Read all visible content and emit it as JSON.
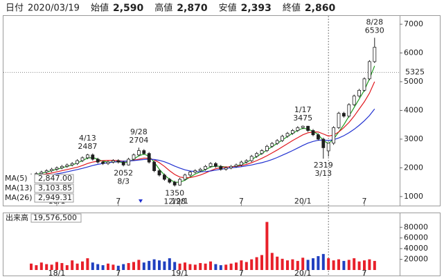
{
  "header": {
    "date_name": "日付",
    "date": "2020/03/19",
    "fields": [
      {
        "name": "始値",
        "value": "2,590",
        "color": "#000000"
      },
      {
        "name": "高値",
        "value": "2,870",
        "color": "#e0181e"
      },
      {
        "name": "安値",
        "value": "2,393",
        "color": "#1e9a1e"
      },
      {
        "name": "終値",
        "value": "2,860",
        "color": "#000000"
      }
    ]
  },
  "chart_data": {
    "type": "candlestick",
    "categories": [
      null,
      null,
      null,
      null,
      null,
      "18/1",
      null,
      null,
      null,
      null,
      null,
      null,
      null,
      null,
      null,
      null,
      null,
      "7",
      null,
      null,
      null,
      null,
      null,
      null,
      null,
      null,
      null,
      null,
      null,
      "19/1",
      null,
      null,
      null,
      null,
      null,
      null,
      null,
      null,
      null,
      null,
      null,
      "7",
      null,
      null,
      null,
      null,
      null,
      null,
      null,
      null,
      null,
      null,
      null,
      "20/1",
      null,
      null,
      null,
      null,
      null,
      null,
      null,
      null,
      null,
      null,
      null,
      "7",
      null,
      null
    ],
    "open": [
      1700,
      1750,
      1800,
      1850,
      1900,
      1950,
      2000,
      2050,
      2100,
      2150,
      2250,
      2350,
      2450,
      2300,
      2200,
      2150,
      2200,
      2250,
      2200,
      2100,
      2300,
      2450,
      2600,
      2500,
      2200,
      1900,
      1750,
      1600,
      1500,
      1400,
      1600,
      1750,
      1850,
      1900,
      1950,
      2050,
      2150,
      2050,
      1950,
      2000,
      2050,
      2100,
      2200,
      2250,
      2400,
      2500,
      2600,
      2750,
      2850,
      2950,
      3100,
      3200,
      3300,
      3400,
      3450,
      3300,
      3150,
      3000,
      2590,
      2860,
      3400,
      3900,
      3800,
      4200,
      4500,
      4700,
      5100,
      5700
    ],
    "high": [
      1800,
      1850,
      1900,
      1950,
      2000,
      2050,
      2100,
      2150,
      2200,
      2300,
      2400,
      2487,
      2500,
      2350,
      2250,
      2250,
      2300,
      2300,
      2250,
      2350,
      2500,
      2704,
      2650,
      2550,
      2250,
      1950,
      1800,
      1650,
      1550,
      1650,
      1800,
      1900,
      1950,
      2000,
      2100,
      2200,
      2200,
      2100,
      2050,
      2100,
      2150,
      2250,
      2300,
      2450,
      2550,
      2650,
      2800,
      2900,
      3000,
      3150,
      3250,
      3350,
      3450,
      3475,
      3460,
      3350,
      3200,
      3050,
      2870,
      3450,
      3950,
      3950,
      4250,
      4550,
      4750,
      5150,
      5750,
      6530
    ],
    "low": [
      1650,
      1700,
      1750,
      1800,
      1850,
      1900,
      1950,
      2000,
      2050,
      2100,
      2200,
      2300,
      2250,
      2150,
      2100,
      2100,
      2150,
      2150,
      2052,
      2080,
      2250,
      2400,
      2450,
      2150,
      1850,
      1700,
      1550,
      1450,
      1350,
      1380,
      1550,
      1700,
      1800,
      1850,
      1900,
      2000,
      2000,
      1900,
      1900,
      1950,
      2000,
      2050,
      2150,
      2200,
      2350,
      2450,
      2550,
      2700,
      2800,
      2900,
      3050,
      3150,
      3250,
      3350,
      3250,
      3100,
      2950,
      2319,
      2393,
      2800,
      3350,
      3750,
      3750,
      4150,
      4450,
      4650,
      5050,
      5650
    ],
    "close": [
      1750,
      1800,
      1850,
      1900,
      1950,
      2000,
      2050,
      2100,
      2150,
      2250,
      2350,
      2450,
      2300,
      2200,
      2150,
      2200,
      2250,
      2200,
      2100,
      2300,
      2450,
      2600,
      2500,
      2200,
      1900,
      1750,
      1600,
      1500,
      1400,
      1600,
      1750,
      1850,
      1900,
      1950,
      2050,
      2150,
      2050,
      1950,
      2000,
      2050,
      2100,
      2200,
      2250,
      2400,
      2500,
      2600,
      2750,
      2850,
      2950,
      3100,
      3200,
      3300,
      3400,
      3450,
      3300,
      3150,
      3000,
      2700,
      2860,
      3400,
      3900,
      3800,
      4200,
      4500,
      4700,
      5100,
      5700,
      6200
    ],
    "up_color": "#ffffff",
    "down_color": "#1f1f1f",
    "outline_color": "#1f1f1f",
    "series": [
      {
        "name": "MA(5)",
        "color": "#1e9a1e",
        "value_label": "2,847.00",
        "values": [
          1720,
          1770,
          1810,
          1850,
          1900,
          1950,
          2000,
          2050,
          2100,
          2170,
          2250,
          2340,
          2360,
          2300,
          2230,
          2200,
          2200,
          2210,
          2180,
          2200,
          2300,
          2420,
          2480,
          2400,
          2200,
          1950,
          1750,
          1600,
          1500,
          1500,
          1570,
          1680,
          1780,
          1860,
          1940,
          2030,
          2060,
          2050,
          2030,
          2040,
          2060,
          2120,
          2190,
          2290,
          2390,
          2500,
          2620,
          2740,
          2850,
          2970,
          3090,
          3200,
          3300,
          3380,
          3350,
          3270,
          3160,
          2950,
          2847,
          3000,
          3250,
          3500,
          3800,
          4100,
          4400,
          4700,
          5100,
          5550
        ]
      },
      {
        "name": "MA(13)",
        "color": "#e0181e",
        "value_label": "3,103.85",
        "values": [
          1700,
          1730,
          1760,
          1790,
          1820,
          1860,
          1900,
          1940,
          1980,
          2020,
          2080,
          2150,
          2200,
          2230,
          2250,
          2260,
          2260,
          2250,
          2230,
          2230,
          2260,
          2300,
          2340,
          2330,
          2280,
          2180,
          2050,
          1900,
          1770,
          1680,
          1650,
          1660,
          1700,
          1750,
          1820,
          1900,
          1970,
          2010,
          2030,
          2040,
          2050,
          2080,
          2120,
          2180,
          2250,
          2330,
          2420,
          2520,
          2620,
          2730,
          2840,
          2950,
          3050,
          3150,
          3220,
          3250,
          3250,
          3180,
          3103.85,
          3140,
          3250,
          3400,
          3580,
          3800,
          4050,
          4300,
          4600,
          5000
        ]
      },
      {
        "name": "MA(26)",
        "color": "#2030d0",
        "value_label": "2,949.31",
        "values": [
          1650,
          1680,
          1700,
          1730,
          1760,
          1790,
          1820,
          1860,
          1900,
          1940,
          1980,
          2030,
          2080,
          2120,
          2150,
          2180,
          2200,
          2220,
          2230,
          2240,
          2250,
          2270,
          2290,
          2300,
          2290,
          2260,
          2210,
          2140,
          2060,
          1990,
          1930,
          1890,
          1870,
          1860,
          1870,
          1890,
          1920,
          1950,
          1980,
          2000,
          2020,
          2040,
          2070,
          2100,
          2140,
          2180,
          2230,
          2290,
          2360,
          2440,
          2520,
          2600,
          2690,
          2780,
          2860,
          2920,
          2960,
          2970,
          2949.31,
          2980,
          3040,
          3120,
          3220,
          3340,
          3480,
          3640,
          3820,
          4050
        ]
      }
    ],
    "annotations": [
      {
        "date": "4/13",
        "value": 2487
      },
      {
        "date": "8/3",
        "value": 2052
      },
      {
        "date": "9/28",
        "value": 2704
      },
      {
        "date": "12/28",
        "value": 1350
      },
      {
        "date": "1/17",
        "value": 3475
      },
      {
        "date": "3/13",
        "value": 2319
      },
      {
        "date": "8/28",
        "value": 6530
      }
    ],
    "price_line": 5325,
    "price_line_color": "#e0181e",
    "ylim": [
      660,
      7290
    ],
    "yticks": [
      1000,
      2000,
      3000,
      4000,
      5000,
      6000,
      7000
    ],
    "volume": {
      "label": "出来高",
      "total_label": "19,576,500",
      "up_color": "#e8202a",
      "down_color": "#2040c0",
      "values": [
        12000,
        9000,
        14000,
        11000,
        10000,
        15000,
        13000,
        9000,
        18000,
        12000,
        16000,
        22000,
        14000,
        11000,
        9000,
        12000,
        10000,
        8000,
        11000,
        13000,
        15000,
        19000,
        14000,
        17000,
        20000,
        18000,
        16000,
        22000,
        15000,
        12000,
        14000,
        11000,
        10000,
        13000,
        12000,
        16000,
        11000,
        9000,
        10000,
        12000,
        14000,
        18000,
        15000,
        20000,
        24000,
        28000,
        90000,
        32000,
        25000,
        21000,
        18000,
        20000,
        17000,
        23000,
        19000,
        22000,
        26000,
        30000,
        22000,
        18000,
        20000,
        17000,
        19000,
        22000,
        16000,
        18000,
        20000,
        17000
      ],
      "ylim": [
        0,
        105000
      ],
      "yticks": [
        20000,
        40000,
        60000,
        80000
      ]
    }
  }
}
